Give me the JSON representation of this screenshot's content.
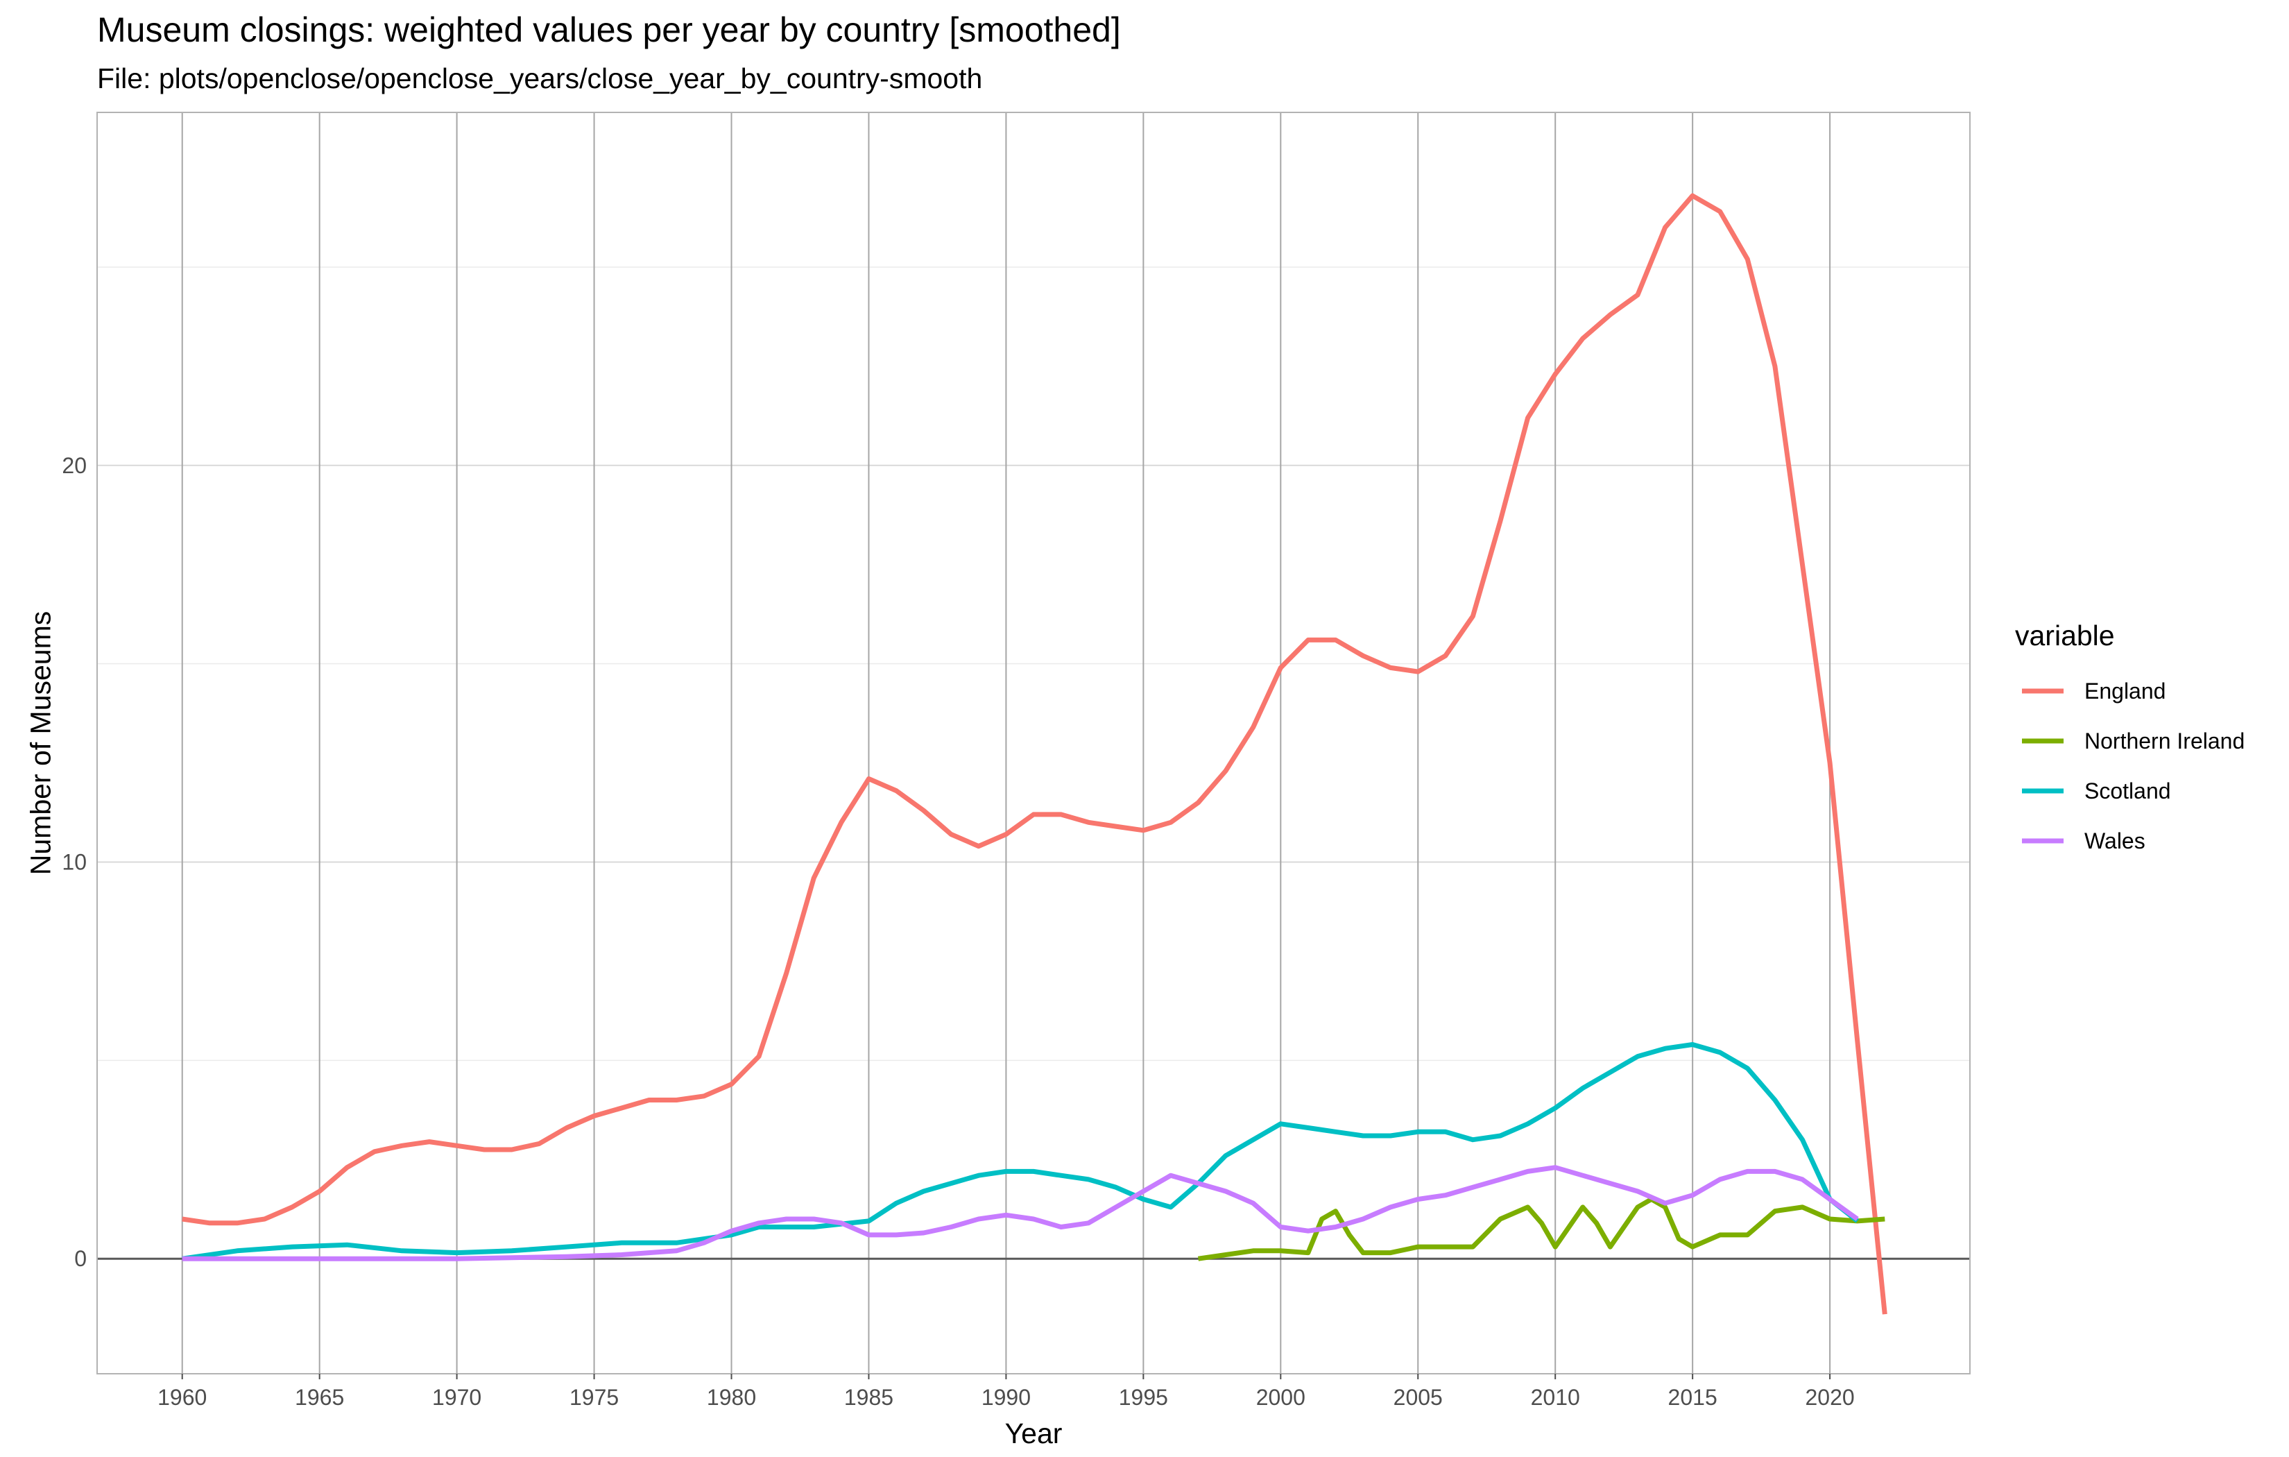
{
  "chart_data": {
    "type": "line",
    "title": "Museum closings: weighted values per year by country [smoothed]",
    "subtitle": "File: plots/openclose/openclose_years/close_year_by_country-smooth",
    "xlabel": "Year",
    "ylabel": "Number of Museums",
    "xlim": [
      1956.9,
      2025.1
    ],
    "ylim": [
      -2.9,
      28.9
    ],
    "x_ticks": [
      1960,
      1965,
      1970,
      1975,
      1980,
      1985,
      1990,
      1995,
      2000,
      2005,
      2010,
      2015,
      2020
    ],
    "y_ticks": [
      0,
      10,
      20
    ],
    "x_grid": "major, grey",
    "y_grid": "major and minor, light",
    "zero_line": 0,
    "legend": {
      "title": "variable",
      "position": "right"
    },
    "series": [
      {
        "name": "England",
        "color": "#F8766D",
        "points": [
          [
            1960,
            1.0
          ],
          [
            1961,
            0.9
          ],
          [
            1962,
            0.9
          ],
          [
            1963,
            1.0
          ],
          [
            1964,
            1.3
          ],
          [
            1965,
            1.7
          ],
          [
            1966,
            2.3
          ],
          [
            1967,
            2.7
          ],
          [
            1968,
            2.85
          ],
          [
            1969,
            2.95
          ],
          [
            1970,
            2.85
          ],
          [
            1971,
            2.75
          ],
          [
            1972,
            2.75
          ],
          [
            1973,
            2.9
          ],
          [
            1974,
            3.3
          ],
          [
            1975,
            3.6
          ],
          [
            1976,
            3.8
          ],
          [
            1977,
            4.0
          ],
          [
            1978,
            4.0
          ],
          [
            1979,
            4.1
          ],
          [
            1980,
            4.4
          ],
          [
            1981,
            5.1
          ],
          [
            1982,
            7.2
          ],
          [
            1983,
            9.6
          ],
          [
            1984,
            11.0
          ],
          [
            1985,
            12.1
          ],
          [
            1986,
            11.8
          ],
          [
            1987,
            11.3
          ],
          [
            1988,
            10.7
          ],
          [
            1989,
            10.4
          ],
          [
            1990,
            10.7
          ],
          [
            1991,
            11.2
          ],
          [
            1992,
            11.2
          ],
          [
            1993,
            11.0
          ],
          [
            1994,
            10.9
          ],
          [
            1995,
            10.8
          ],
          [
            1996,
            11.0
          ],
          [
            1997,
            11.5
          ],
          [
            1998,
            12.3
          ],
          [
            1999,
            13.4
          ],
          [
            2000,
            14.9
          ],
          [
            2001,
            15.6
          ],
          [
            2002,
            15.6
          ],
          [
            2003,
            15.2
          ],
          [
            2004,
            14.9
          ],
          [
            2005,
            14.8
          ],
          [
            2006,
            15.2
          ],
          [
            2007,
            16.2
          ],
          [
            2008,
            18.6
          ],
          [
            2009,
            21.2
          ],
          [
            2010,
            22.3
          ],
          [
            2011,
            23.2
          ],
          [
            2012,
            23.8
          ],
          [
            2013,
            24.3
          ],
          [
            2014,
            26.0
          ],
          [
            2015,
            26.8
          ],
          [
            2016,
            26.4
          ],
          [
            2017,
            25.2
          ],
          [
            2018,
            22.5
          ],
          [
            2019,
            17.5
          ],
          [
            2020,
            12.5
          ],
          [
            2021,
            5.5
          ],
          [
            2022,
            -1.4
          ]
        ]
      },
      {
        "name": "Northern Ireland",
        "color": "#7CAE00",
        "points": [
          [
            1997,
            0.0
          ],
          [
            1998,
            0.1
          ],
          [
            1999,
            0.2
          ],
          [
            2000,
            0.2
          ],
          [
            2001,
            0.15
          ],
          [
            2001.5,
            1.0
          ],
          [
            2002,
            1.2
          ],
          [
            2002.5,
            0.6
          ],
          [
            2003,
            0.15
          ],
          [
            2004,
            0.15
          ],
          [
            2005,
            0.3
          ],
          [
            2006,
            0.3
          ],
          [
            2007,
            0.3
          ],
          [
            2008,
            1.0
          ],
          [
            2009,
            1.3
          ],
          [
            2009.5,
            0.9
          ],
          [
            2010,
            0.3
          ],
          [
            2011,
            1.3
          ],
          [
            2011.5,
            0.9
          ],
          [
            2012,
            0.3
          ],
          [
            2013,
            1.3
          ],
          [
            2013.5,
            1.5
          ],
          [
            2014,
            1.3
          ],
          [
            2014.5,
            0.5
          ],
          [
            2015,
            0.3
          ],
          [
            2016,
            0.6
          ],
          [
            2017,
            0.6
          ],
          [
            2018,
            1.2
          ],
          [
            2019,
            1.3
          ],
          [
            2020,
            1.0
          ],
          [
            2021,
            0.95
          ],
          [
            2022,
            1.0
          ]
        ]
      },
      {
        "name": "Scotland",
        "color": "#00BFC4",
        "points": [
          [
            1960,
            0.0
          ],
          [
            1962,
            0.2
          ],
          [
            1964,
            0.3
          ],
          [
            1966,
            0.35
          ],
          [
            1968,
            0.2
          ],
          [
            1970,
            0.15
          ],
          [
            1972,
            0.2
          ],
          [
            1974,
            0.3
          ],
          [
            1976,
            0.4
          ],
          [
            1978,
            0.4
          ],
          [
            1980,
            0.6
          ],
          [
            1981,
            0.8
          ],
          [
            1983,
            0.8
          ],
          [
            1985,
            0.95
          ],
          [
            1986,
            1.4
          ],
          [
            1987,
            1.7
          ],
          [
            1988,
            1.9
          ],
          [
            1989,
            2.1
          ],
          [
            1990,
            2.2
          ],
          [
            1991,
            2.2
          ],
          [
            1992,
            2.1
          ],
          [
            1993,
            2.0
          ],
          [
            1994,
            1.8
          ],
          [
            1995,
            1.5
          ],
          [
            1996,
            1.3
          ],
          [
            1997,
            1.9
          ],
          [
            1998,
            2.6
          ],
          [
            1999,
            3.0
          ],
          [
            2000,
            3.4
          ],
          [
            2001,
            3.3
          ],
          [
            2002,
            3.2
          ],
          [
            2003,
            3.1
          ],
          [
            2004,
            3.1
          ],
          [
            2005,
            3.2
          ],
          [
            2006,
            3.2
          ],
          [
            2007,
            3.0
          ],
          [
            2008,
            3.1
          ],
          [
            2009,
            3.4
          ],
          [
            2010,
            3.8
          ],
          [
            2011,
            4.3
          ],
          [
            2012,
            4.7
          ],
          [
            2013,
            5.1
          ],
          [
            2014,
            5.3
          ],
          [
            2015,
            5.4
          ],
          [
            2016,
            5.2
          ],
          [
            2017,
            4.8
          ],
          [
            2018,
            4.0
          ],
          [
            2019,
            3.0
          ],
          [
            2020,
            1.5
          ],
          [
            2021,
            0.95
          ]
        ]
      },
      {
        "name": "Wales",
        "color": "#C77CFF",
        "points": [
          [
            1960,
            0.0
          ],
          [
            1965,
            0.0
          ],
          [
            1970,
            0.0
          ],
          [
            1974,
            0.05
          ],
          [
            1976,
            0.1
          ],
          [
            1978,
            0.2
          ],
          [
            1979,
            0.4
          ],
          [
            1980,
            0.7
          ],
          [
            1981,
            0.9
          ],
          [
            1982,
            1.0
          ],
          [
            1983,
            1.0
          ],
          [
            1984,
            0.9
          ],
          [
            1985,
            0.6
          ],
          [
            1986,
            0.6
          ],
          [
            1987,
            0.65
          ],
          [
            1988,
            0.8
          ],
          [
            1989,
            1.0
          ],
          [
            1990,
            1.1
          ],
          [
            1991,
            1.0
          ],
          [
            1992,
            0.8
          ],
          [
            1993,
            0.9
          ],
          [
            1994,
            1.3
          ],
          [
            1995,
            1.7
          ],
          [
            1996,
            2.1
          ],
          [
            1997,
            1.9
          ],
          [
            1998,
            1.7
          ],
          [
            1999,
            1.4
          ],
          [
            2000,
            0.8
          ],
          [
            2001,
            0.7
          ],
          [
            2002,
            0.8
          ],
          [
            2003,
            1.0
          ],
          [
            2004,
            1.3
          ],
          [
            2005,
            1.5
          ],
          [
            2006,
            1.6
          ],
          [
            2007,
            1.8
          ],
          [
            2008,
            2.0
          ],
          [
            2009,
            2.2
          ],
          [
            2010,
            2.3
          ],
          [
            2011,
            2.1
          ],
          [
            2012,
            1.9
          ],
          [
            2013,
            1.7
          ],
          [
            2014,
            1.4
          ],
          [
            2015,
            1.6
          ],
          [
            2016,
            2.0
          ],
          [
            2017,
            2.2
          ],
          [
            2018,
            2.2
          ],
          [
            2019,
            2.0
          ],
          [
            2020,
            1.5
          ],
          [
            2021,
            1.0
          ]
        ]
      }
    ]
  }
}
